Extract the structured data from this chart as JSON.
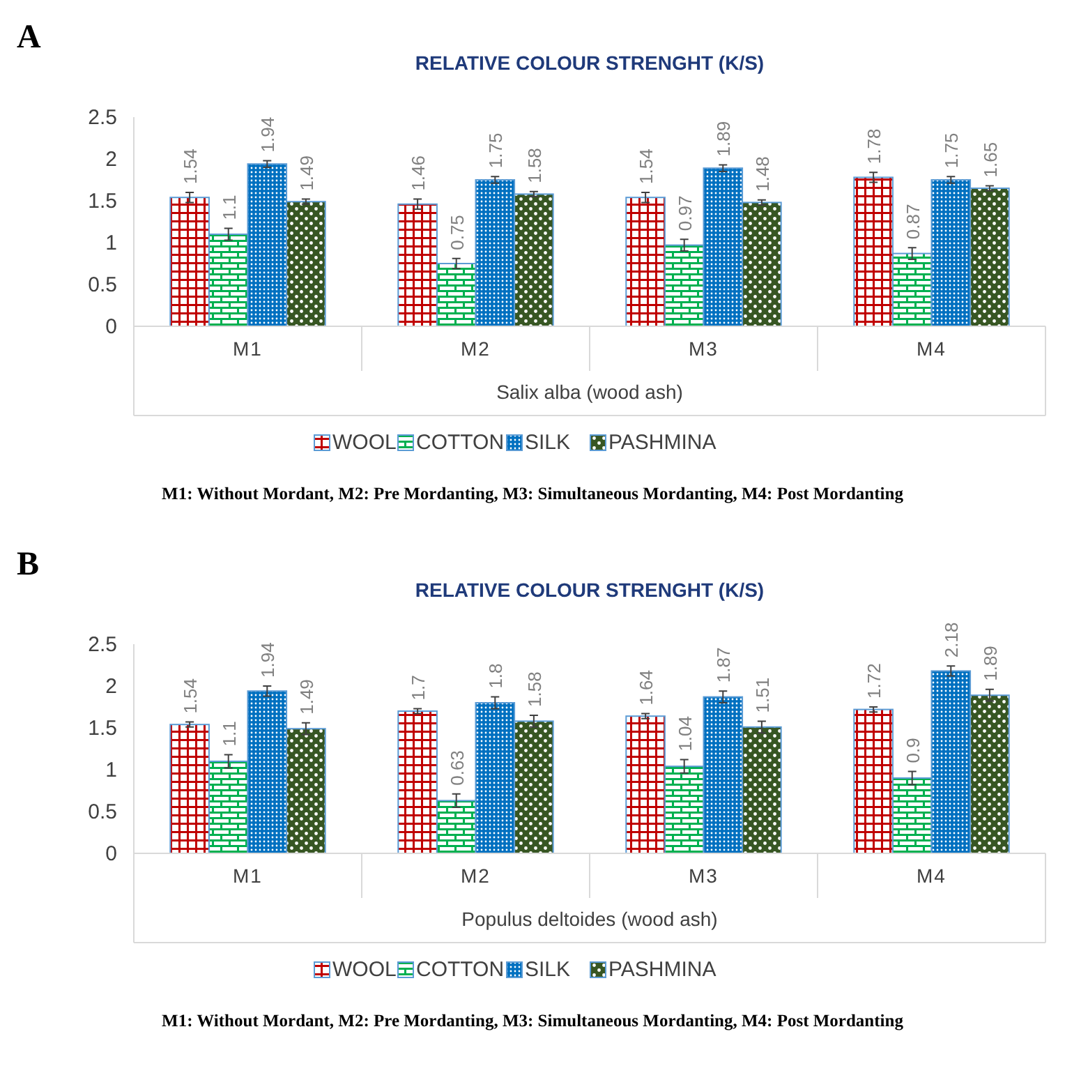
{
  "chart_data": [
    {
      "type": "bar",
      "title": "RELATIVE COLOUR STRENGHT (K/S)",
      "xlabel": "Salix alba (wood ash)",
      "categories": [
        "M1",
        "M2",
        "M3",
        "M4"
      ],
      "ylim": [
        0,
        2.5
      ],
      "yticks": [
        0,
        0.5,
        1,
        1.5,
        2,
        2.5
      ],
      "grid": false,
      "legend": "bottom",
      "data_labels": true,
      "series": [
        {
          "name": "WOOL",
          "color": "#c00000",
          "values": [
            1.54,
            1.46,
            1.54,
            1.78
          ],
          "errors": [
            0.06,
            0.06,
            0.06,
            0.06
          ]
        },
        {
          "name": "COTTON",
          "color": "#00b050",
          "values": [
            1.1,
            0.75,
            0.97,
            0.87
          ],
          "errors": [
            0.07,
            0.06,
            0.07,
            0.07
          ]
        },
        {
          "name": "SILK",
          "color": "#0070c0",
          "values": [
            1.94,
            1.75,
            1.89,
            1.75
          ],
          "errors": [
            0.04,
            0.04,
            0.04,
            0.04
          ]
        },
        {
          "name": "PASHMINA",
          "color": "#375623",
          "values": [
            1.49,
            1.58,
            1.48,
            1.65
          ],
          "errors": [
            0.03,
            0.03,
            0.03,
            0.03
          ]
        }
      ],
      "annotations": [
        "A",
        "M1: Without Mordant, M2: Pre Mordanting, M3: Simultaneous Mordanting, M4: Post Mordanting"
      ]
    },
    {
      "type": "bar",
      "title": "RELATIVE COLOUR STRENGHT (K/S)",
      "xlabel": "Populus deltoides (wood ash)",
      "categories": [
        "M1",
        "M2",
        "M3",
        "M4"
      ],
      "ylim": [
        0,
        2.5
      ],
      "yticks": [
        0,
        0.5,
        1,
        1.5,
        2,
        2.5
      ],
      "grid": false,
      "legend": "bottom",
      "data_labels": true,
      "series": [
        {
          "name": "WOOL",
          "color": "#c00000",
          "values": [
            1.54,
            1.7,
            1.64,
            1.72
          ],
          "errors": [
            0.03,
            0.03,
            0.03,
            0.03
          ]
        },
        {
          "name": "COTTON",
          "color": "#00b050",
          "values": [
            1.1,
            0.63,
            1.04,
            0.9
          ],
          "errors": [
            0.08,
            0.08,
            0.08,
            0.08
          ]
        },
        {
          "name": "SILK",
          "color": "#0070c0",
          "values": [
            1.94,
            1.8,
            1.87,
            2.18
          ],
          "errors": [
            0.06,
            0.07,
            0.07,
            0.06
          ]
        },
        {
          "name": "PASHMINA",
          "color": "#375623",
          "values": [
            1.49,
            1.58,
            1.51,
            1.89
          ],
          "errors": [
            0.07,
            0.07,
            0.07,
            0.07
          ]
        }
      ],
      "annotations": [
        "B",
        "M1: Without Mordant, M2: Pre Mordanting, M3: Simultaneous Mordanting, M4: Post Mordanting"
      ]
    }
  ]
}
